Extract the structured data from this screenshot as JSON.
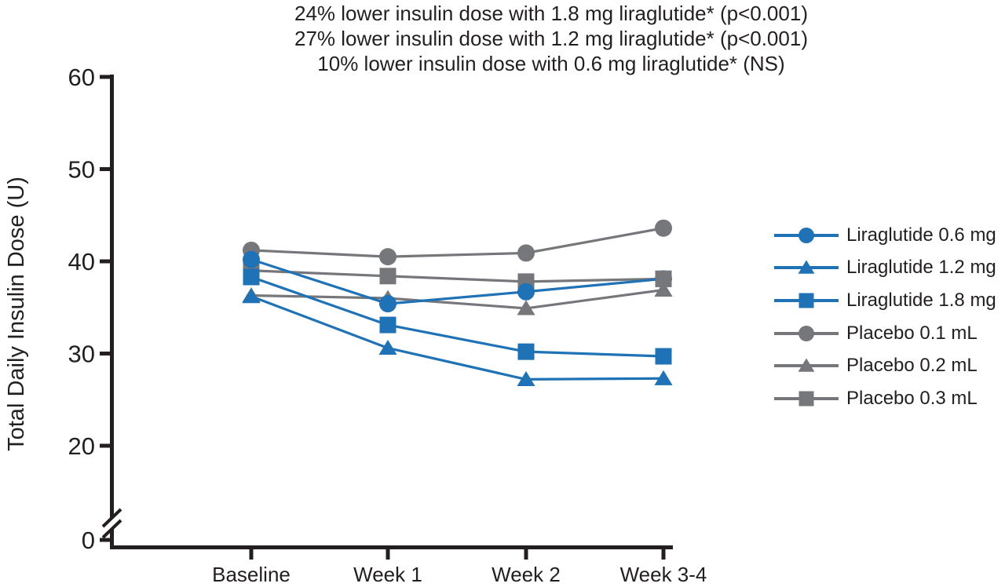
{
  "title": {
    "lines": [
      "24% lower insulin dose with 1.8 mg liraglutide* (p<0.001)",
      "27% lower insulin dose with 1.2 mg liraglutide* (p<0.001)",
      "10% lower insulin dose with 0.6 mg liraglutide* (NS)"
    ]
  },
  "colors": {
    "liraglutide": "#1e72b5",
    "placebo": "#76777a",
    "axis": "#231f20",
    "background": "#ffffff"
  },
  "chart_data": {
    "type": "line",
    "categories": [
      "Baseline",
      "Week 1",
      "Week 2",
      "Week 3-4"
    ],
    "series": [
      {
        "name": "Liraglutide 0.6 mg",
        "marker": "circle",
        "color_key": "liraglutide",
        "values": [
          40.2,
          35.4,
          36.7,
          38.1
        ]
      },
      {
        "name": "Liraglutide 1.2 mg",
        "marker": "triangle",
        "color_key": "liraglutide",
        "values": [
          36.2,
          30.6,
          27.2,
          27.3
        ]
      },
      {
        "name": "Liraglutide 1.8 mg",
        "marker": "square",
        "color_key": "liraglutide",
        "values": [
          38.3,
          33.1,
          30.2,
          29.7
        ]
      },
      {
        "name": "Placebo 0.1 mL",
        "marker": "circle",
        "color_key": "placebo",
        "values": [
          41.2,
          40.5,
          40.9,
          43.6
        ]
      },
      {
        "name": "Placebo 0.2 mL",
        "marker": "triangle",
        "color_key": "placebo",
        "values": [
          36.3,
          36.0,
          34.9,
          36.9
        ]
      },
      {
        "name": "Placebo 0.3 mL",
        "marker": "square",
        "color_key": "placebo",
        "values": [
          39.0,
          38.4,
          37.8,
          38.1
        ]
      }
    ],
    "xlabel": "",
    "ylabel": "Total Daily Insulin Dose (U)",
    "ylim": [
      0,
      60
    ],
    "yticks": [
      0,
      20,
      30,
      40,
      50,
      60
    ],
    "axis_break": true,
    "grid": false,
    "legend_position": "right"
  }
}
